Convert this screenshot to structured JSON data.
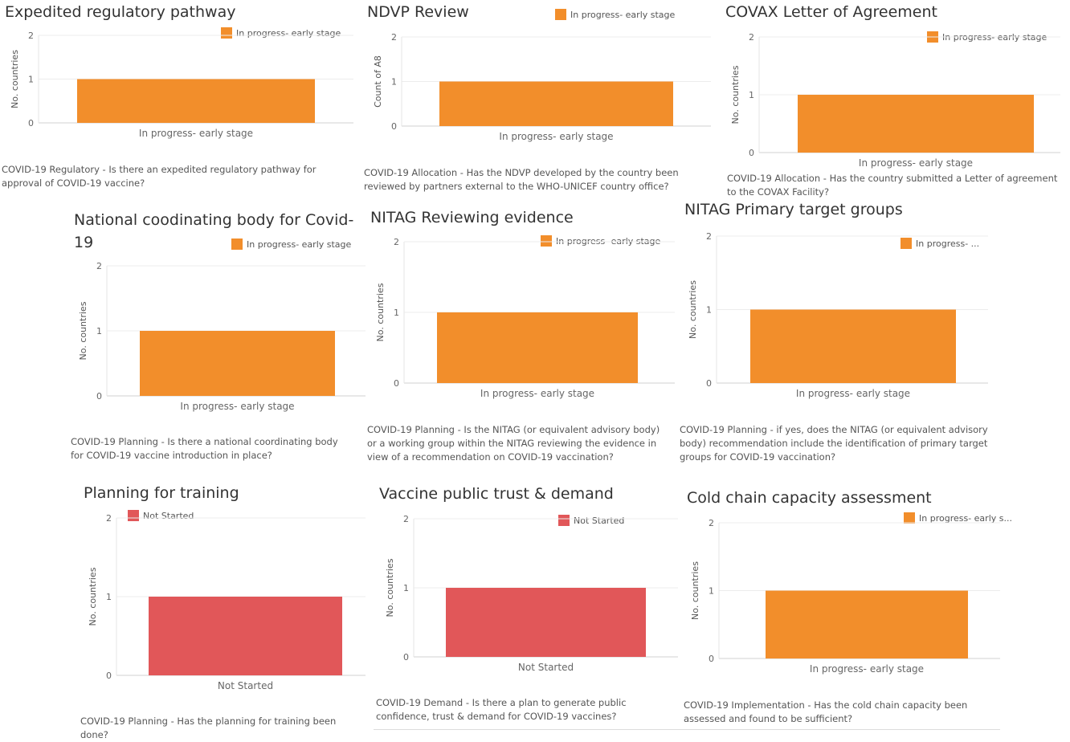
{
  "panels": [
    {
      "title": "Expedited regulatory pathway",
      "legend": {
        "label": "In progress- early stage",
        "color": "#f28e2b"
      },
      "caption": "COVID-19 Regulatory -  Is there an expedited regulatory pathway for approval of COVID-19 vaccine?",
      "chart_data": {
        "type": "bar",
        "categories": [
          "In progress- early stage"
        ],
        "values": [
          1
        ],
        "ylim": [
          0,
          2
        ],
        "yticks": [
          0,
          1,
          2
        ],
        "ylabel": "No. countries",
        "xlabel": "",
        "color": "#f28e2b"
      }
    },
    {
      "title": "NDVP Review",
      "legend": {
        "label": "In progress- early stage",
        "color": "#f28e2b"
      },
      "caption": "COVID-19 Allocation - Has the NDVP developed by the country been reviewed by partners external to the WHO-UNICEF country office?",
      "chart_data": {
        "type": "bar",
        "categories": [
          "In progress- early stage"
        ],
        "values": [
          1
        ],
        "ylim": [
          0,
          2
        ],
        "yticks": [
          0,
          1,
          2
        ],
        "ylabel": "Count of A8",
        "xlabel": "",
        "color": "#f28e2b"
      }
    },
    {
      "title": "COVAX Letter of Agreement",
      "legend": {
        "label": "In progress- early stage",
        "color": "#f28e2b"
      },
      "caption": "COVID-19 Allocation - Has the country submitted a Letter of agreement to the COVAX Facility?",
      "chart_data": {
        "type": "bar",
        "categories": [
          "In progress- early stage"
        ],
        "values": [
          1
        ],
        "ylim": [
          0,
          2
        ],
        "yticks": [
          0,
          1,
          2
        ],
        "ylabel": "No. countries",
        "xlabel": "",
        "color": "#f28e2b"
      }
    },
    {
      "title": "National coodinating body for Covid-19",
      "legend": {
        "label": "In progress- early stage",
        "color": "#f28e2b"
      },
      "caption": "COVID-19 Planning - Is there a national coordinating body for COVID-19 vaccine introduction in place?",
      "chart_data": {
        "type": "bar",
        "categories": [
          "In progress- early stage"
        ],
        "values": [
          1
        ],
        "ylim": [
          0,
          2
        ],
        "yticks": [
          0,
          1,
          2
        ],
        "ylabel": "No. countries",
        "xlabel": "",
        "color": "#f28e2b"
      }
    },
    {
      "title": "NITAG Reviewing evidence",
      "legend": {
        "label": "In progress- early stage",
        "color": "#f28e2b"
      },
      "caption": "COVID-19 Planning  - Is the NITAG (or equivalent advisory body) or a working group within the NITAG reviewing the evidence in view of a recommendation on COVID-19 vaccination?",
      "chart_data": {
        "type": "bar",
        "categories": [
          "In progress- early stage"
        ],
        "values": [
          1
        ],
        "ylim": [
          0,
          2
        ],
        "yticks": [
          0,
          1,
          2
        ],
        "ylabel": "No. countries",
        "xlabel": "",
        "color": "#f28e2b"
      }
    },
    {
      "title": "NITAG Primary target groups",
      "legend": {
        "label": "In progress- ...",
        "color": "#f28e2b"
      },
      "caption": "COVID-19 Planning -  if yes, does the NITAG (or equivalent advisory body) recommendation include the identification of primary target groups for COVID-19 vaccination?",
      "chart_data": {
        "type": "bar",
        "categories": [
          "In progress- early stage"
        ],
        "values": [
          1
        ],
        "ylim": [
          0,
          2
        ],
        "yticks": [
          0,
          1,
          2
        ],
        "ylabel": "No. countries",
        "xlabel": "",
        "color": "#f28e2b"
      }
    },
    {
      "title": "Planning for training",
      "legend": {
        "label": "Not Started",
        "color": "#e15759"
      },
      "caption": "COVID-19 Planning - Has the planning for training been done?",
      "chart_data": {
        "type": "bar",
        "categories": [
          "Not Started"
        ],
        "values": [
          1
        ],
        "ylim": [
          0,
          2
        ],
        "yticks": [
          0,
          1,
          2
        ],
        "ylabel": "No. countries",
        "xlabel": "",
        "color": "#e15759"
      }
    },
    {
      "title": "Vaccine public trust & demand",
      "legend": {
        "label": "Not Started",
        "color": "#e15759"
      },
      "caption": "COVID-19 Demand - Is there a plan to generate public confidence, trust & demand for COVID-19 vaccines?",
      "chart_data": {
        "type": "bar",
        "categories": [
          "Not Started"
        ],
        "values": [
          1
        ],
        "ylim": [
          0,
          2
        ],
        "yticks": [
          0,
          1,
          2
        ],
        "ylabel": "No. countries",
        "xlabel": "",
        "color": "#e15759"
      }
    },
    {
      "title": "Cold chain capacity assessment",
      "legend": {
        "label": "In progress- early s...",
        "color": "#f28e2b"
      },
      "caption": "COVID-19 Implementation - Has the cold chain capacity been assessed and found to be sufficient?",
      "chart_data": {
        "type": "bar",
        "categories": [
          "In progress- early stage"
        ],
        "values": [
          1
        ],
        "ylim": [
          0,
          2
        ],
        "yticks": [
          0,
          1,
          2
        ],
        "ylabel": "No. countries",
        "xlabel": "",
        "color": "#f28e2b"
      }
    }
  ]
}
